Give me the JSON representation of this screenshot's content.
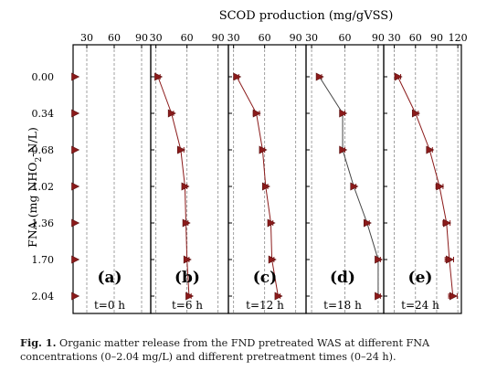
{
  "colors": {
    "series": "#8b1a1a",
    "series_dark": "#5a1010",
    "line_alt": "#444444",
    "axis": "#000000",
    "grid": "#8a8a8a"
  },
  "caption": {
    "label": "Fig. 1.",
    "text": "Organic matter release from the FND pretreated WAS at different FNA concentrations (0–2.04 mg/L) and different pretreatment times (0–24 h)."
  },
  "chart_data": {
    "type": "line",
    "orientation": "horizontal-panels",
    "title": "",
    "xlabel": "SCOD production (mg/gVSS)",
    "ylabel": "FNA (mg NHO2-N/L)",
    "ylabel_parts": {
      "pre": "FNA (mg NHO",
      "sub": "2",
      "post": "-N/L)"
    },
    "categories": [
      "0.00",
      "0.34",
      "0.68",
      "1.02",
      "1.36",
      "1.70",
      "2.04"
    ],
    "panels": [
      {
        "letter": "(a)",
        "time": "t=0 h",
        "xticks": [
          30,
          60,
          90
        ],
        "xlim": [
          15,
          100
        ],
        "values": [
          17,
          17,
          17,
          17,
          17,
          17,
          17
        ],
        "errors": [
          0,
          0,
          0,
          0,
          0,
          0,
          0
        ],
        "line": false
      },
      {
        "letter": "(b)",
        "time": "t=6 h",
        "xticks": [
          30,
          60,
          90
        ],
        "xlim": [
          25,
          100
        ],
        "values": [
          32,
          45,
          54,
          58,
          59,
          60,
          62
        ],
        "errors": [
          2,
          2,
          3,
          2,
          2,
          2,
          2
        ],
        "line": true
      },
      {
        "letter": "(c)",
        "time": "t=12 h",
        "xticks": [
          30,
          60,
          90
        ],
        "xlim": [
          25,
          100
        ],
        "values": [
          33,
          52,
          58,
          61,
          66,
          67,
          73
        ],
        "errors": [
          2,
          3,
          2,
          2,
          2,
          2,
          2
        ],
        "line": true
      },
      {
        "letter": "(d)",
        "time": "t=18 h",
        "xticks": [
          30,
          60,
          90
        ],
        "xlim": [
          25,
          95
        ],
        "values": [
          37,
          58,
          58,
          68,
          80,
          90,
          90
        ],
        "errors": [
          2,
          2,
          2,
          2,
          2,
          2,
          2
        ],
        "line": true
      },
      {
        "letter": "(e)",
        "time": "t=24 h",
        "xticks": [
          30,
          60,
          90,
          120
        ],
        "xlim": [
          15,
          125
        ],
        "values": [
          35,
          60,
          80,
          94,
          104,
          108,
          113
        ],
        "errors": [
          4,
          4,
          4,
          5,
          5,
          6,
          6
        ],
        "line": true
      }
    ],
    "grid": "dashed vertical lines at x ticks",
    "marker": "right-pointing triangle with horizontal error bars",
    "legend": "none"
  }
}
